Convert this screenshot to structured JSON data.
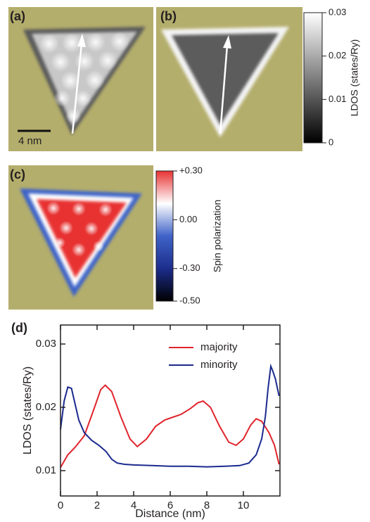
{
  "images": [
    {
      "label": "(a)",
      "scale_bar": "4 nm"
    },
    {
      "label": "(b)"
    },
    {
      "label": "(c)"
    }
  ],
  "chart_data": [
    {
      "type": "colorbar",
      "y_label": "LDOS (states/Ry)",
      "ylim": [
        0,
        0.03
      ],
      "yticks": [
        0.03,
        0.02,
        0.01,
        0
      ],
      "colors": [
        "#000000",
        "#ffffff"
      ]
    },
    {
      "type": "colorbar",
      "y_label": "Spin polarization",
      "ylim": [
        -0.5,
        0.3
      ],
      "yticks": [
        {
          "value": 0.3,
          "label": "+0.30"
        },
        {
          "value": 0,
          "label": "0.00"
        },
        {
          "value": -0.3,
          "label": "-0.30"
        },
        {
          "value": -0.5,
          "label": "-0.50"
        }
      ],
      "colors": [
        "#000000",
        "#1c2d8c",
        "#3f63c8",
        "#ffffff",
        "#e83232"
      ]
    },
    {
      "type": "line",
      "panel_label": "(d)",
      "x_label": "Distance (nm)",
      "y_label": "LDOS (states/Ry)",
      "xlim": [
        0,
        12
      ],
      "ylim": [
        0.006,
        0.033
      ],
      "xticks": [
        0,
        2,
        4,
        6,
        8,
        10
      ],
      "yticks": [
        0.01,
        0.02,
        0.03
      ],
      "series": [
        {
          "name": "majority",
          "color": "#e0242c",
          "x": [
            0,
            0.4,
            0.8,
            1.3,
            1.8,
            2.2,
            2.45,
            2.8,
            3.3,
            3.8,
            4.2,
            4.7,
            5.2,
            5.7,
            6.2,
            6.6,
            7.1,
            7.5,
            7.8,
            8.2,
            8.7,
            9.2,
            9.6,
            10.0,
            10.4,
            10.7,
            11.0,
            11.4,
            11.7,
            11.95
          ],
          "values": [
            0.0105,
            0.0125,
            0.0137,
            0.0155,
            0.0195,
            0.0228,
            0.0235,
            0.0225,
            0.0185,
            0.015,
            0.0138,
            0.015,
            0.017,
            0.018,
            0.0185,
            0.0189,
            0.0198,
            0.0207,
            0.021,
            0.02,
            0.017,
            0.0145,
            0.014,
            0.015,
            0.0172,
            0.0182,
            0.0178,
            0.016,
            0.014,
            0.011
          ]
        },
        {
          "name": "minority",
          "color": "#1b2a8e",
          "x": [
            0,
            0.2,
            0.4,
            0.6,
            0.8,
            1.0,
            1.3,
            1.7,
            2.1,
            2.5,
            2.8,
            3.1,
            3.5,
            4.0,
            5.0,
            6.0,
            7.0,
            8.0,
            9.0,
            9.8,
            10.3,
            10.7,
            11.0,
            11.2,
            11.35,
            11.5,
            11.6,
            11.75,
            11.95
          ],
          "values": [
            0.0165,
            0.021,
            0.0232,
            0.023,
            0.0205,
            0.018,
            0.016,
            0.0148,
            0.014,
            0.013,
            0.0118,
            0.0112,
            0.011,
            0.0109,
            0.0108,
            0.0107,
            0.0107,
            0.0106,
            0.0107,
            0.0108,
            0.0112,
            0.0125,
            0.015,
            0.0185,
            0.023,
            0.0265,
            0.0258,
            0.0245,
            0.0218
          ]
        }
      ]
    }
  ]
}
